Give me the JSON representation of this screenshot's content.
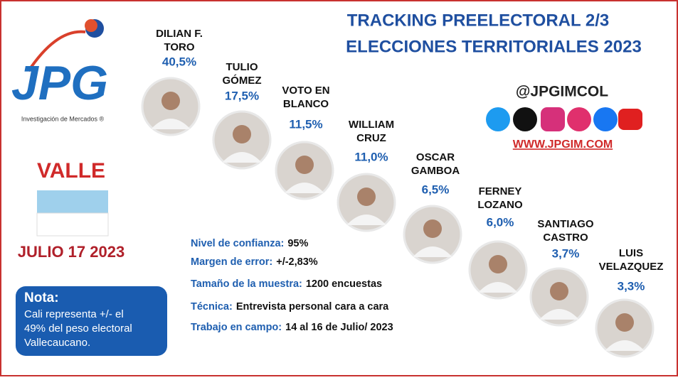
{
  "logo": {
    "text": "JPG",
    "subtitle": "Investigación de Mercados ®"
  },
  "header": {
    "title_lines": [
      "TRACKING PREELECTORAL 2/3",
      "ELECCIONES TERRITORIALES 2023"
    ]
  },
  "region": "VALLE",
  "date": "JULIO 17 2023",
  "candidates": [
    {
      "name_lines": [
        "DILIAN F.",
        "TORO"
      ],
      "percent": "40,5%"
    },
    {
      "name_lines": [
        "TULIO",
        "GÓMEZ"
      ],
      "percent": "17,5%"
    },
    {
      "name_lines": [
        "VOTO EN",
        "BLANCO"
      ],
      "percent": "11,5%"
    },
    {
      "name_lines": [
        "WILLIAM",
        "CRUZ"
      ],
      "percent": "11,0%"
    },
    {
      "name_lines": [
        "OSCAR",
        "GAMBOA"
      ],
      "percent": "6,5%"
    },
    {
      "name_lines": [
        "FERNEY",
        "LOZANO"
      ],
      "percent": "6,0%"
    },
    {
      "name_lines": [
        "SANTIAGO",
        "CASTRO"
      ],
      "percent": "3,7%"
    },
    {
      "name_lines": [
        "LUIS",
        "VELAZQUEZ"
      ],
      "percent": "3,3%"
    }
  ],
  "details": [
    {
      "label": "Nivel de confianza:",
      "value": "95%"
    },
    {
      "label": "Margen de error:",
      "value": "+/-2,83%"
    },
    {
      "label": "Tamaño de la muestra:",
      "value": "1200 encuestas"
    },
    {
      "label": "Técnica:",
      "value": "Entrevista personal cara a cara"
    },
    {
      "label": "Trabajo en campo:",
      "value": "14 al 16 de Julio/ 2023"
    }
  ],
  "note": {
    "title": "Nota:",
    "text_lines": [
      "Cali representa +/- el",
      "49% del peso electoral",
      "Vallecaucano."
    ]
  },
  "social": {
    "handle": "@JPGIMCOL",
    "website": "WWW.JPGIM.COM"
  }
}
